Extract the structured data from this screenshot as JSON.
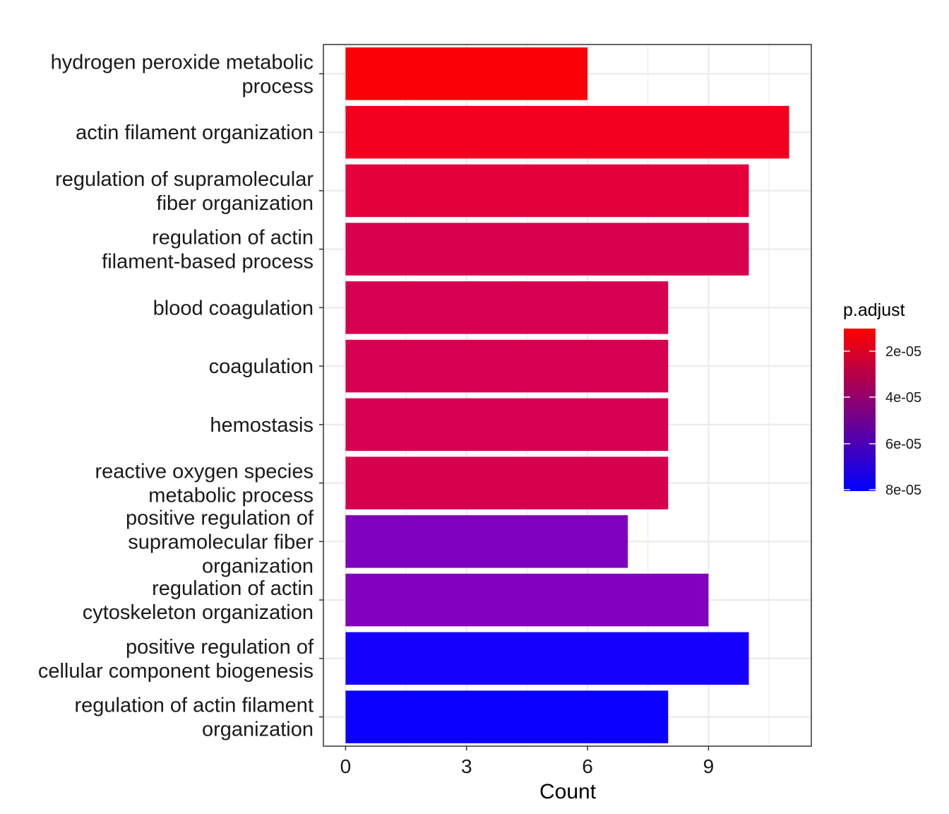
{
  "chart_data": {
    "type": "bar",
    "orientation": "horizontal",
    "categories": [
      "hydrogen peroxide metabolic\nprocess",
      "actin filament organization",
      "regulation of supramolecular\nfiber organization",
      "regulation of actin\nfilament-based process",
      "blood coagulation",
      "coagulation",
      "hemostasis",
      "reactive oxygen species\nmetabolic process",
      "positive regulation of\nsupramolecular fiber\norganization",
      "regulation of actin\ncytoskeleton organization",
      "positive regulation of\ncellular component biogenesis",
      "regulation of actin filament\norganization"
    ],
    "values": [
      6,
      11,
      10,
      10,
      8,
      8,
      8,
      8,
      7,
      9,
      10,
      8
    ],
    "colors": [
      "#fb0006",
      "#f1001f",
      "#e5003b",
      "#d9004d",
      "#d60050",
      "#d50050",
      "#d50051",
      "#d7004d",
      "#8000c0",
      "#8200bd",
      "#1600fd",
      "#0b00ff"
    ],
    "xlabel": "Count",
    "ylabel": "",
    "xlim": [
      -0.55,
      11.55
    ],
    "xticks": [
      "0",
      "3",
      "6",
      "9"
    ],
    "xtick_values": [
      0,
      3,
      6,
      9
    ],
    "grid": true,
    "legend": {
      "title": "p.adjust",
      "placement": "right",
      "ticks": [
        "2e-05",
        "4e-05",
        "6e-05",
        "8e-05"
      ],
      "gradient_colors": [
        "#ff0000",
        "#0000ff"
      ]
    }
  }
}
